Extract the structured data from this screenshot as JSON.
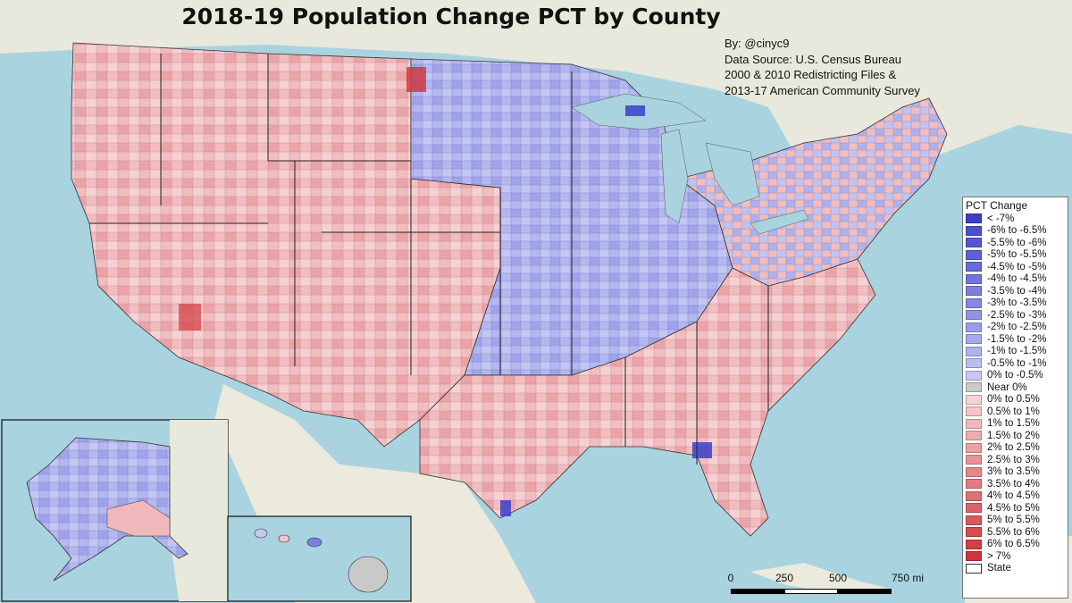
{
  "title": "2018-19 Population Change PCT by County",
  "credits": [
    "By: @cinyc9",
    "Data Source: U.S. Census Bureau",
    "2000 & 2010 Redistricting Files &",
    "2013-17 American Community Survey"
  ],
  "legend": {
    "title": "PCT Change",
    "items": [
      {
        "label": "< -7%",
        "color": "#3a3fcb"
      },
      {
        "label": "-6% to -6.5%",
        "color": "#4a50d0"
      },
      {
        "label": "-5.5% to -6%",
        "color": "#5358d2"
      },
      {
        "label": "-5% to -5.5%",
        "color": "#5c61d6"
      },
      {
        "label": "-4.5% to -5%",
        "color": "#666bd9"
      },
      {
        "label": "-4% to -4.5%",
        "color": "#7075dd"
      },
      {
        "label": "-3.5% to -4%",
        "color": "#7a7fe0"
      },
      {
        "label": "-3% to -3.5%",
        "color": "#8489e3"
      },
      {
        "label": "-2.5% to -3%",
        "color": "#8f94e6"
      },
      {
        "label": "-2% to -2.5%",
        "color": "#999ee9"
      },
      {
        "label": "-1.5% to -2%",
        "color": "#a4a8ec"
      },
      {
        "label": "-1% to -1.5%",
        "color": "#afb2ef"
      },
      {
        "label": "-0.5% to -1%",
        "color": "#babdf2"
      },
      {
        "label": "0% to -0.5%",
        "color": "#c6c8f5"
      },
      {
        "label": "Near 0%",
        "color": "#c9c9c9"
      },
      {
        "label": "0% to 0.5%",
        "color": "#f7d1d3"
      },
      {
        "label": "0.5% to 1%",
        "color": "#f4c4c7"
      },
      {
        "label": "1% to 1.5%",
        "color": "#f1b8bb"
      },
      {
        "label": "1.5% to 2%",
        "color": "#eeacaf"
      },
      {
        "label": "2% to 2.5%",
        "color": "#eba0a3"
      },
      {
        "label": "2.5% to 3%",
        "color": "#e89497"
      },
      {
        "label": "3% to 3.5%",
        "color": "#e5888b"
      },
      {
        "label": "3.5% to 4%",
        "color": "#e27c80"
      },
      {
        "label": "4% to 4.5%",
        "color": "#df7074"
      },
      {
        "label": "4.5% to 5%",
        "color": "#dc6468"
      },
      {
        "label": "5% to 5.5%",
        "color": "#d9585c"
      },
      {
        "label": "5.5% to 6%",
        "color": "#d64c50"
      },
      {
        "label": "6% to 6.5%",
        "color": "#d34044"
      },
      {
        "label": "> 7%",
        "color": "#d0343a"
      },
      {
        "label": "State",
        "color": "#ffffff"
      }
    ]
  },
  "scale_bar": {
    "unit": "mi",
    "ticks": [
      {
        "value": 0,
        "label": "0"
      },
      {
        "value": 250,
        "label": "250"
      },
      {
        "value": 500,
        "label": "500"
      },
      {
        "value": 750,
        "label": "750 mi"
      }
    ]
  },
  "colors": {
    "water": "#a9d3df",
    "land": "#eae6dd",
    "state_border": "#222222"
  }
}
